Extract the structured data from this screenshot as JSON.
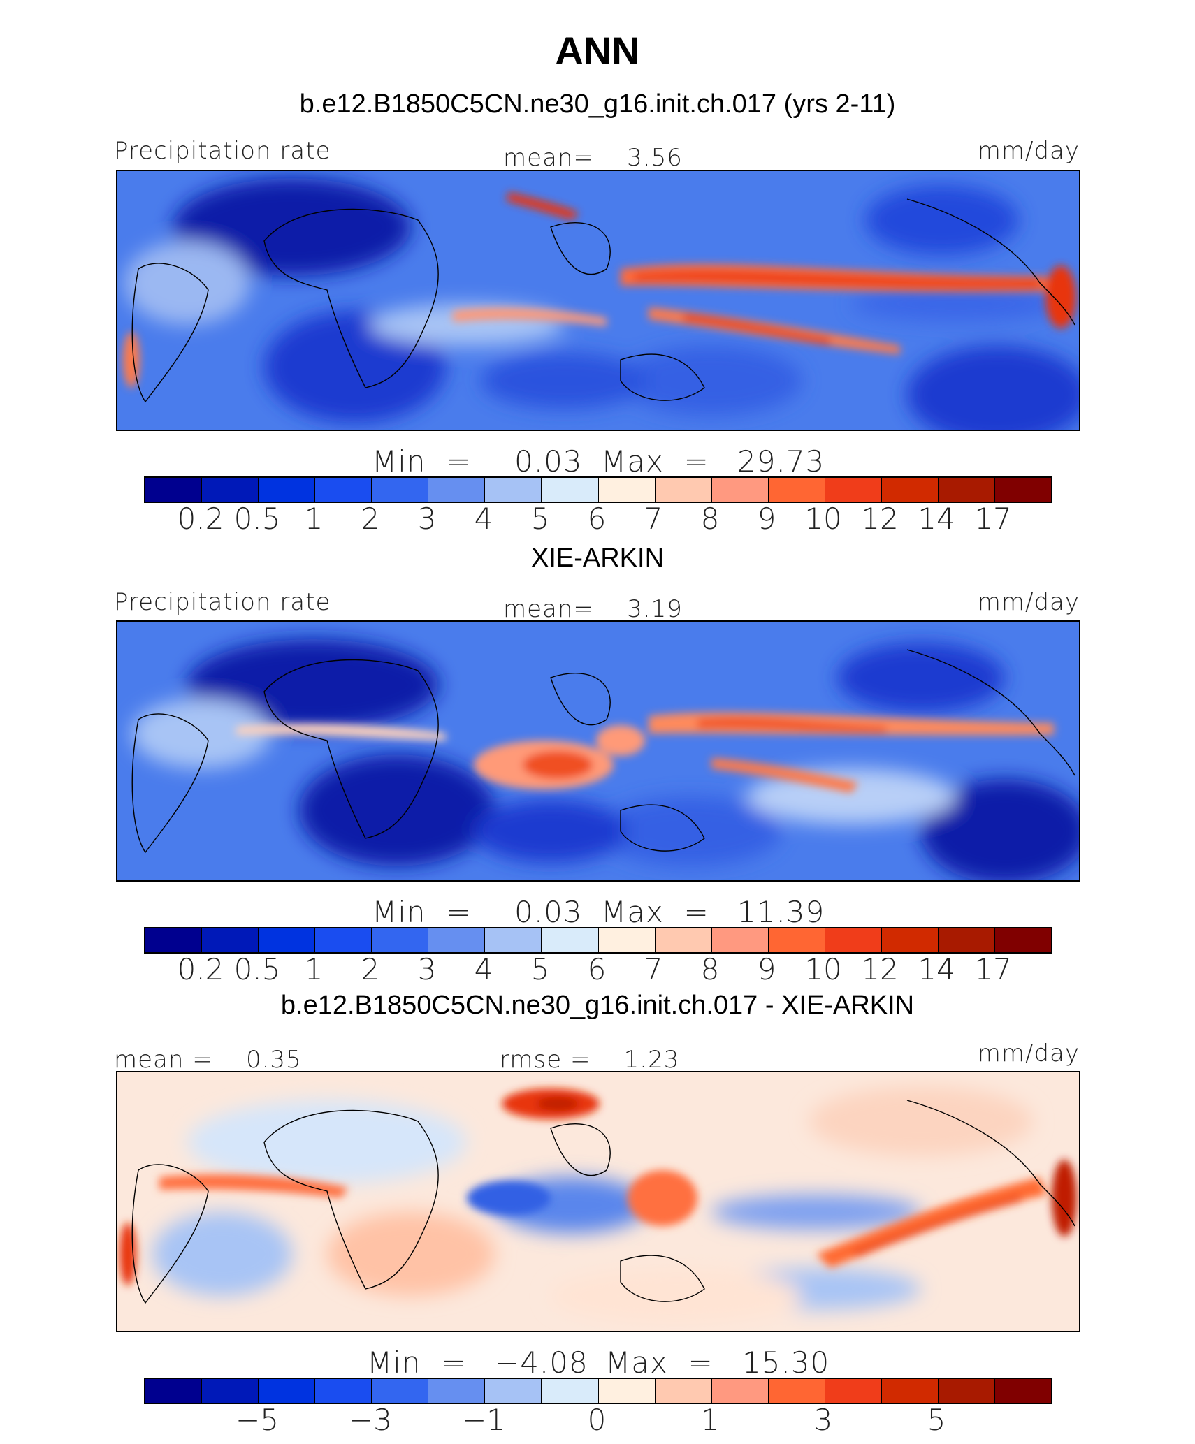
{
  "title": "ANN",
  "palette_precip": [
    "#00008f",
    "#0019b8",
    "#0033e0",
    "#1a4df0",
    "#3366f0",
    "#668ff0",
    "#a6c2f5",
    "#d9ebfa",
    "#fff0e0",
    "#ffc9b0",
    "#ff9980",
    "#ff6633",
    "#f03d1a",
    "#d12a00",
    "#a81a00",
    "#800000"
  ],
  "palette_diff": [
    "#00008f",
    "#0019b8",
    "#0033e0",
    "#1a4df0",
    "#3366f0",
    "#668ff0",
    "#a6c2f5",
    "#d9ebfa",
    "#fff0e0",
    "#ffc9b0",
    "#ff9980",
    "#ff6633",
    "#f03d1a",
    "#d12a00",
    "#a81a00",
    "#800000"
  ],
  "panels": [
    {
      "heading": "b.e12.B1850C5CN.ne30_g16.init.ch.017 (yrs 2-11)",
      "left_label": "Precipitation rate",
      "center_label": "mean=    3.56",
      "right_label": "mm/day",
      "min_label": "Min  =",
      "min_value": "0.03",
      "max_label": "Max  =",
      "max_value": "29.73",
      "ticks": [
        "0.2",
        "0.5",
        "1",
        "2",
        "3",
        "4",
        "5",
        "6",
        "7",
        "8",
        "9",
        "10",
        "12",
        "14",
        "17"
      ],
      "features": [
        "pacific-itcz",
        "spcz",
        "indian-ocean-band",
        "tibet-peak",
        "sahara-dry",
        "south-atlantic-dry",
        "se-pacific-dry"
      ]
    },
    {
      "heading": "XIE-ARKIN",
      "left_label": "Precipitation rate",
      "center_label": "mean=    3.19",
      "right_label": "mm/day",
      "min_label": "Min  =",
      "min_value": "0.03",
      "max_label": "Max  =",
      "max_value": "11.39",
      "ticks": [
        "0.2",
        "0.5",
        "1",
        "2",
        "3",
        "4",
        "5",
        "6",
        "7",
        "8",
        "9",
        "10",
        "12",
        "14",
        "17"
      ],
      "features": [
        "pacific-itcz",
        "spcz",
        "maritime-continent",
        "sahara-dry",
        "south-atlantic-dry",
        "se-pacific-dry"
      ]
    },
    {
      "heading": "b.e12.B1850C5CN.ne30_g16.init.ch.017 - XIE-ARKIN",
      "left_label": "mean =    0.35",
      "center_label": "rmse =    1.23",
      "right_label": "mm/day",
      "min_label": "Min  =",
      "min_value": "−4.08",
      "max_label": "Max  =",
      "max_value": "15.30",
      "ticks": [
        "−5",
        "−3",
        "−1",
        "0",
        "1",
        "3",
        "5"
      ],
      "features": [
        "double-itcz-positive",
        "atlantic-positive",
        "tibet-positive",
        "indian-negative",
        "pacific-negative"
      ]
    }
  ]
}
